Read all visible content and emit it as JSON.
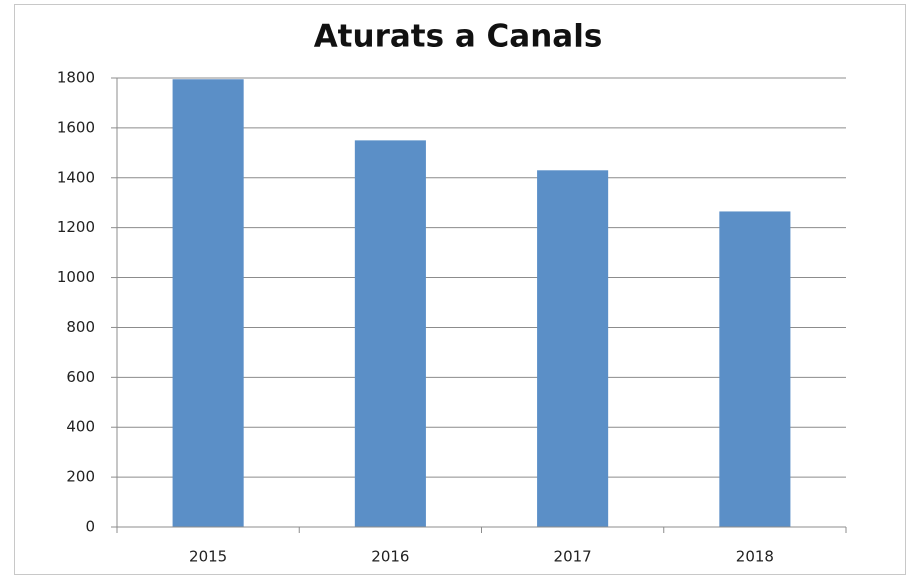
{
  "chart_data": {
    "type": "bar",
    "title": "Aturats a Canals",
    "categories": [
      "2015",
      "2016",
      "2017",
      "2018"
    ],
    "values": [
      1795,
      1550,
      1430,
      1265
    ],
    "color": "#5b8fc7",
    "ylim": [
      0,
      1800
    ],
    "yticks": [
      0,
      200,
      400,
      600,
      800,
      1000,
      1200,
      1400,
      1600,
      1800
    ],
    "grid": true
  }
}
